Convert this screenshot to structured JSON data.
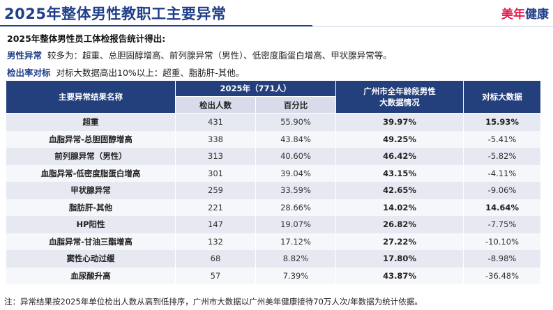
{
  "header": {
    "title": "2025年整体男性教职工主要异常",
    "brand_part1": "美年",
    "brand_part2": "健康"
  },
  "summary": {
    "heading": "2025年整体男性员工体检报告统计得出:",
    "line1_label": "男性异常",
    "line1_text": "较多为：超重、总胆固醇增高、前列腺异常（男性）、低密度脂蛋白增高、甲状腺异常等。",
    "line2_label": "检出率对标",
    "line2_text": "对标大数据高出10%以上：超重、脂肪肝-其他。"
  },
  "table": {
    "headers": {
      "name": "主要异常结果名称",
      "group": "2025年（771人）",
      "count": "检出人数",
      "percent": "百分比",
      "city_line1": "广州市全年龄段男性",
      "city_line2": "大数据情况",
      "compare": "对标大数据"
    },
    "rows": [
      {
        "name": "超重",
        "count": "431",
        "percent": "55.90%",
        "city": "39.97%",
        "compare": "15.93%",
        "compare_bold": true
      },
      {
        "name": "血脂异常-总胆固醇增高",
        "count": "338",
        "percent": "43.84%",
        "city": "49.25%",
        "compare": "-5.41%",
        "compare_bold": false
      },
      {
        "name": "前列腺异常（男性）",
        "count": "313",
        "percent": "40.60%",
        "city": "46.42%",
        "compare": "-5.82%",
        "compare_bold": false
      },
      {
        "name": "血脂异常-低密度脂蛋白增高",
        "count": "301",
        "percent": "39.04%",
        "city": "43.15%",
        "compare": "-4.11%",
        "compare_bold": false
      },
      {
        "name": "甲状腺异常",
        "count": "259",
        "percent": "33.59%",
        "city": "42.65%",
        "compare": "-9.06%",
        "compare_bold": false
      },
      {
        "name": "脂肪肝-其他",
        "count": "221",
        "percent": "28.66%",
        "city": "14.02%",
        "compare": "14.64%",
        "compare_bold": true
      },
      {
        "name": "HP阳性",
        "count": "147",
        "percent": "19.07%",
        "city": "26.82%",
        "compare": "-7.75%",
        "compare_bold": false
      },
      {
        "name": "血脂异常-甘油三酯增高",
        "count": "132",
        "percent": "17.12%",
        "city": "27.22%",
        "compare": "-10.10%",
        "compare_bold": false
      },
      {
        "name": "窦性心动过缓",
        "count": "68",
        "percent": "8.82%",
        "city": "17.80%",
        "compare": "-8.98%",
        "compare_bold": false
      },
      {
        "name": "血尿酸升高",
        "count": "57",
        "percent": "7.39%",
        "city": "43.87%",
        "compare": "-36.48%",
        "compare_bold": false
      }
    ]
  },
  "note": "注：异常结果按2025年单位检出人数从高到低排序，广州市大数据以广州美年健康接待70万人次/年数据为统计依据。",
  "colors": {
    "header_bg": "#233f7c",
    "subheader_bg": "#d8dcea",
    "title": "#1f3f8a",
    "brand_red": "#e31b4c"
  }
}
